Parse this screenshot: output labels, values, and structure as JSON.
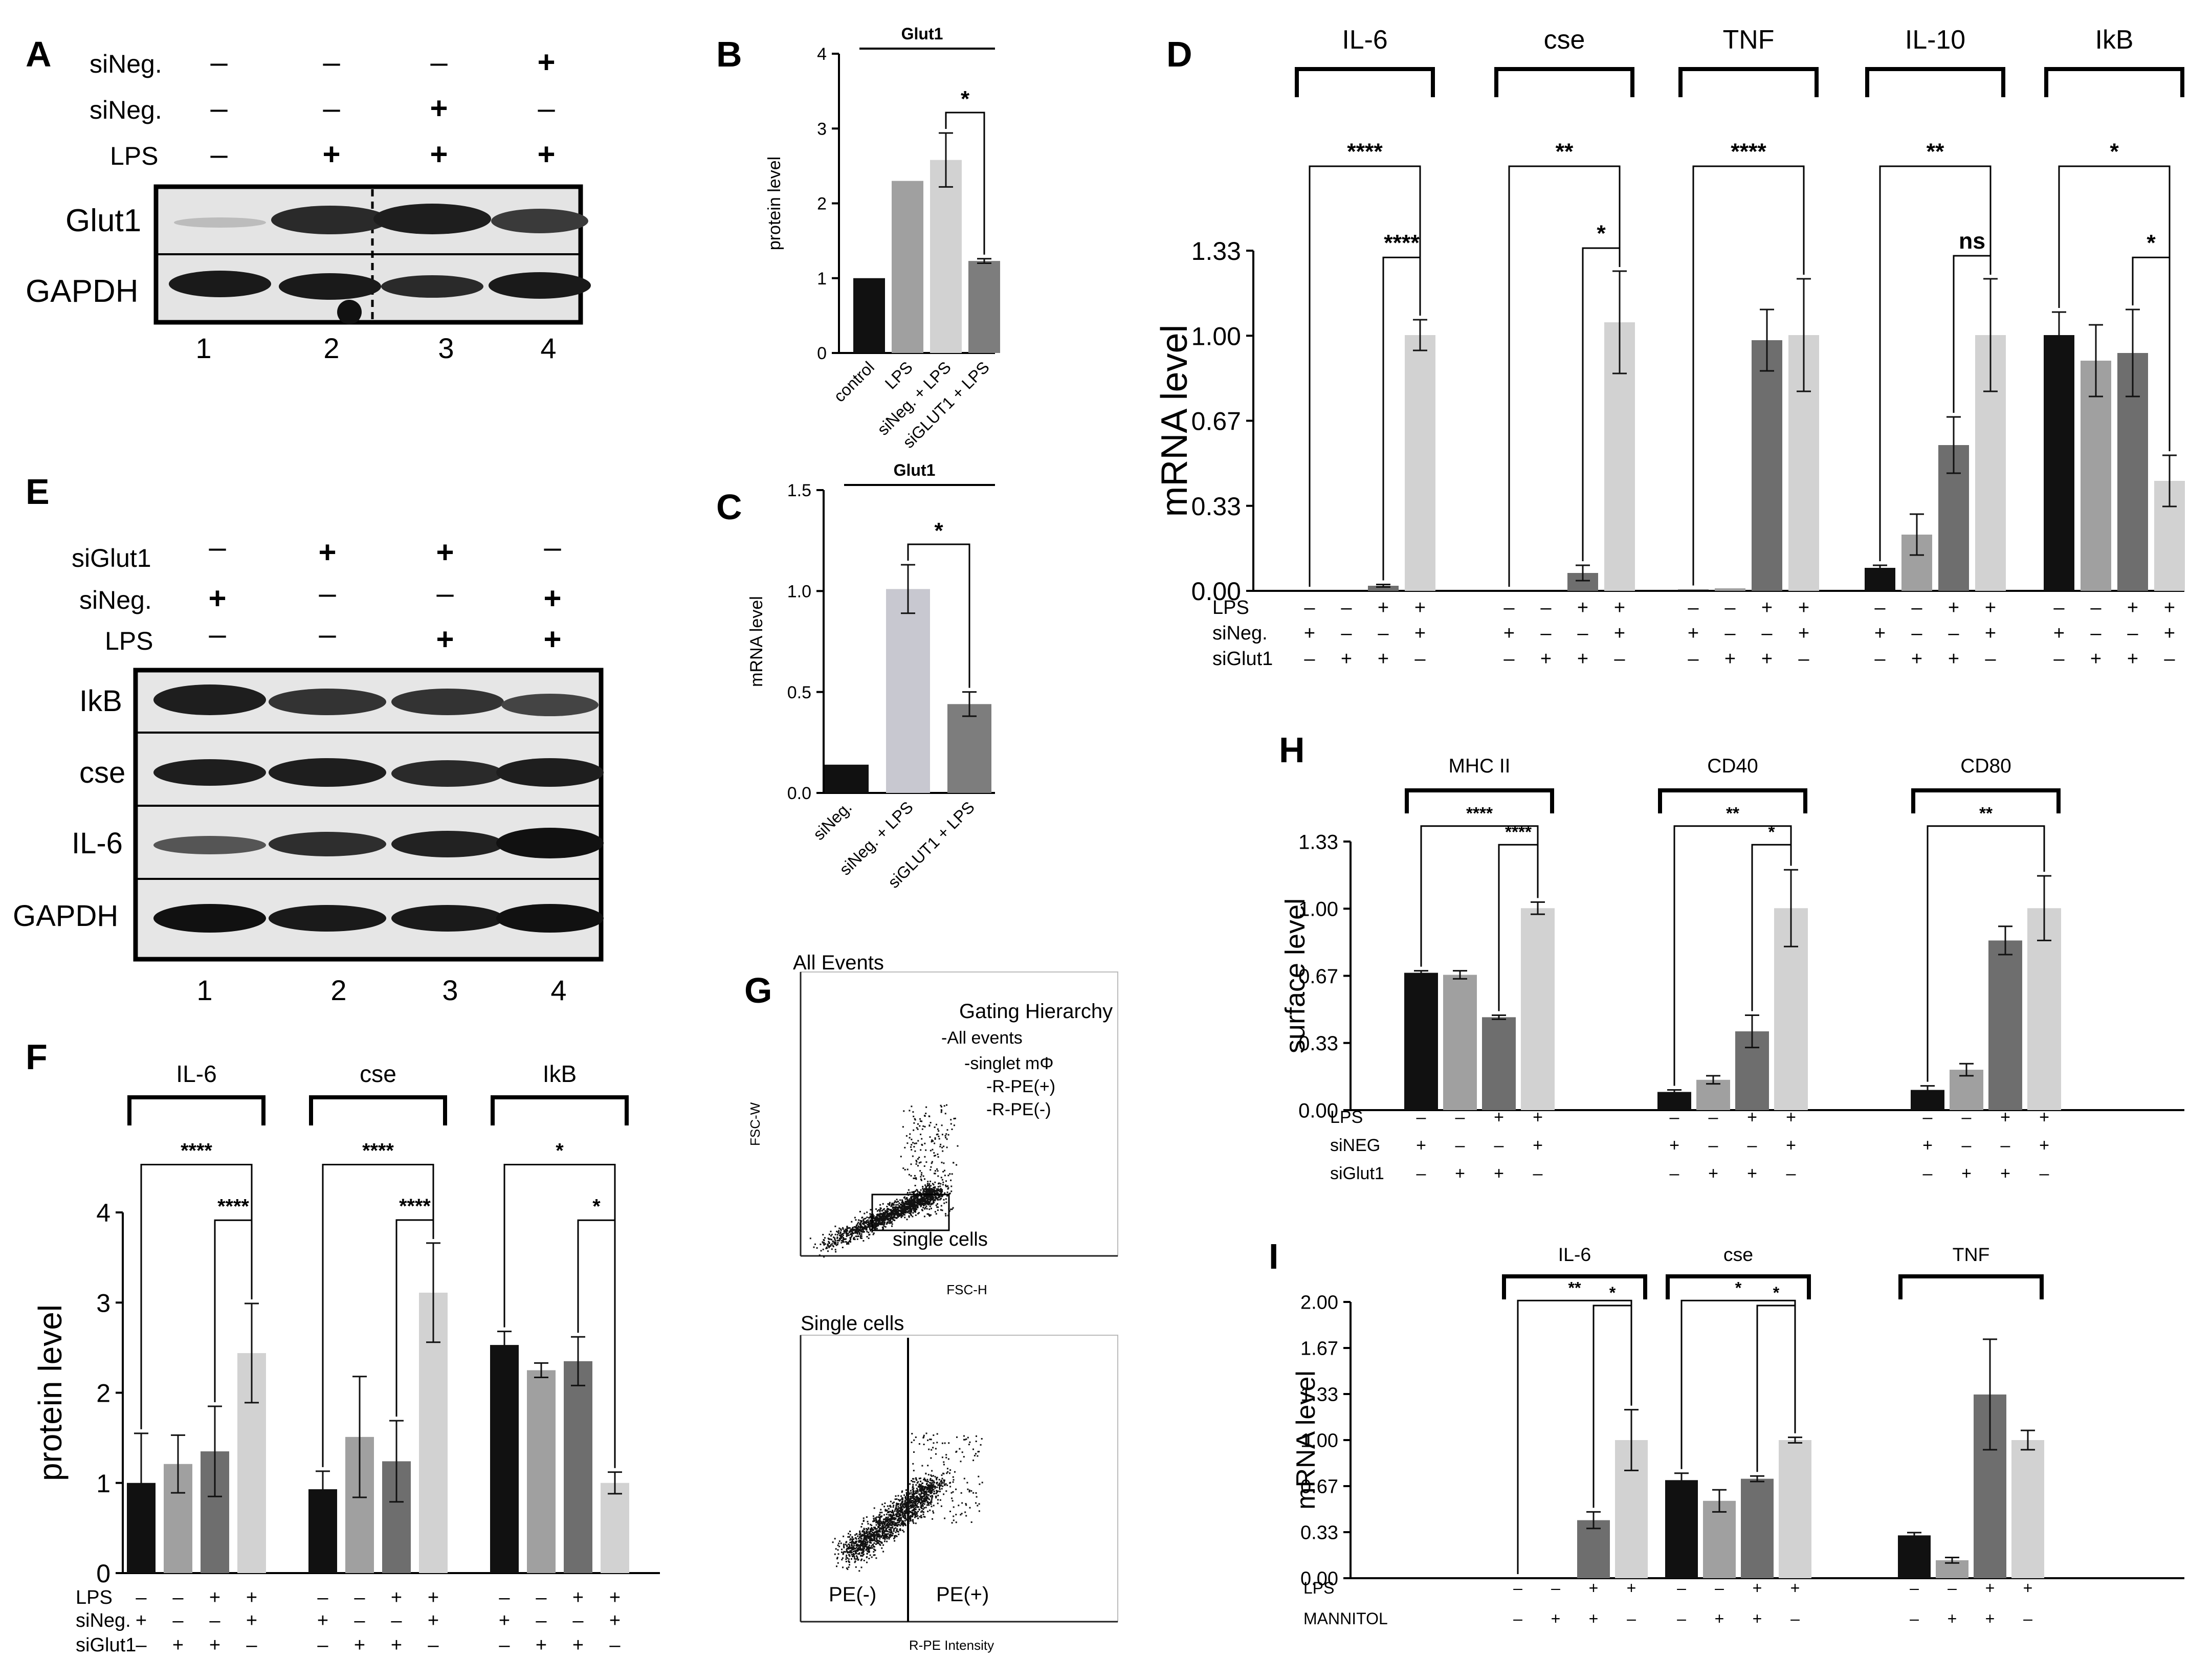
{
  "figure": {
    "panel_letters": {
      "A": "A",
      "B": "B",
      "C": "C",
      "D": "D",
      "E": "E",
      "F": "F",
      "G": "G",
      "H": "H",
      "I": "I"
    },
    "colors": {
      "black": "#111111",
      "gray1": "#a0a0a0",
      "gray2": "#7d7d7d",
      "gray3": "#d2d2d2",
      "gray_light": "#c8c8d0",
      "gray_mid": "#6e6e6e"
    }
  },
  "panelA": {
    "rows": [
      {
        "label": "siNeg.",
        "signs": [
          "–",
          "–",
          "–",
          "+"
        ]
      },
      {
        "label": "siNeg.",
        "signs": [
          "–",
          "–",
          "+",
          "–"
        ]
      },
      {
        "label": "LPS",
        "signs": [
          "–",
          "+",
          "+",
          "+"
        ]
      }
    ],
    "bands": [
      "Glut1",
      "GAPDH"
    ],
    "lanes": [
      "1",
      "2",
      "3",
      "4"
    ]
  },
  "panelE": {
    "rows": [
      {
        "label": "siGlut1",
        "signs": [
          "–",
          "+",
          "+",
          "–"
        ]
      },
      {
        "label": "siNeg.",
        "signs": [
          "+",
          "–",
          "–",
          "+"
        ]
      },
      {
        "label": "LPS",
        "signs": [
          "–",
          "–",
          "+",
          "+"
        ]
      }
    ],
    "bands": [
      "IkB",
      "cse",
      "IL-6",
      "GAPDH"
    ],
    "lanes": [
      "1",
      "2",
      "3",
      "4"
    ]
  },
  "panelG": {
    "top_title": "All Events",
    "gating_title": "Gating Hierarchy",
    "gating_items": [
      "-All events",
      "-singlet mΦ",
      "-R-PE(+)",
      "-R-PE(-)"
    ],
    "top_ylabel": "FSC-W",
    "top_xlabel": "FSC-H",
    "gate_label": "single cells",
    "bottom_title": "Single cells",
    "bottom_xlabel": "R-PE Intensity",
    "neg_label": "PE(-)",
    "pos_label": "PE(+)"
  },
  "chart_data": [
    {
      "id": "B",
      "type": "bar",
      "title": "Glut1",
      "ylabel": "protein level",
      "ylim": [
        0,
        4
      ],
      "yticks": [
        "0",
        "1",
        "2",
        "3",
        "4"
      ],
      "categories": [
        "control",
        "LPS",
        "siNeg. + LPS",
        "siGLUT1 + LPS"
      ],
      "values": [
        1.0,
        2.3,
        2.58,
        1.23
      ],
      "errors": [
        0,
        0,
        0.36,
        0.03
      ],
      "annotations": [
        {
          "from": 2,
          "to": 3,
          "label": "*"
        }
      ]
    },
    {
      "id": "C",
      "type": "bar",
      "title": "Glut1",
      "ylabel": "mRNA level",
      "ylim": [
        0,
        1.5
      ],
      "yticks": [
        "0.0",
        "0.5",
        "1.0",
        "1.5"
      ],
      "categories": [
        "siNeg.",
        "siNeg. + LPS",
        "siGLUT1 + LPS"
      ],
      "values": [
        0.14,
        1.01,
        0.44
      ],
      "errors": [
        0,
        0.12,
        0.06
      ],
      "annotations": [
        {
          "from": 1,
          "to": 2,
          "label": "*"
        }
      ]
    },
    {
      "id": "D",
      "type": "bar",
      "ylabel": "mRNA level",
      "ylim": [
        0,
        1.33
      ],
      "yticks": [
        "0.00",
        "0.33",
        "0.67",
        "1.00",
        "1.33"
      ],
      "groups": [
        {
          "name": "IL-6",
          "values": [
            0,
            0,
            0.02,
            1.0
          ],
          "errors": [
            0,
            0,
            0.005,
            0.06
          ],
          "brackets": [
            {
              "from": 0,
              "to": 3,
              "label": "****"
            },
            {
              "from": 2,
              "to": 3,
              "label": "****"
            }
          ]
        },
        {
          "name": "cse",
          "values": [
            0,
            0,
            0.07,
            1.05
          ],
          "errors": [
            0,
            0,
            0.03,
            0.2
          ],
          "brackets": [
            {
              "from": 0,
              "to": 3,
              "label": "**"
            },
            {
              "from": 2,
              "to": 3,
              "label": "*"
            }
          ]
        },
        {
          "name": "TNF",
          "values": [
            0.005,
            0.01,
            0.98,
            1.0
          ],
          "errors": [
            0,
            0,
            0.12,
            0.22
          ],
          "brackets": [
            {
              "from": 0,
              "to": 3,
              "label": "****"
            }
          ]
        },
        {
          "name": "IL-10",
          "values": [
            0.09,
            0.22,
            0.57,
            1.0
          ],
          "errors": [
            0.01,
            0.08,
            0.11,
            0.22
          ],
          "brackets": [
            {
              "from": 0,
              "to": 3,
              "label": "**"
            },
            {
              "from": 2,
              "to": 3,
              "label": "ns"
            }
          ]
        },
        {
          "name": "IkB",
          "values": [
            1.0,
            0.9,
            0.93,
            0.43
          ],
          "errors": [
            0.09,
            0.14,
            0.17,
            0.1
          ],
          "brackets": [
            {
              "from": 0,
              "to": 3,
              "label": "*"
            },
            {
              "from": 2,
              "to": 3,
              "label": "*"
            }
          ]
        }
      ],
      "condition_rows": [
        {
          "label": "LPS",
          "signs": [
            "–",
            "–",
            "+",
            "+"
          ]
        },
        {
          "label": "siNeg.",
          "signs": [
            "+",
            "–",
            "–",
            "+"
          ]
        },
        {
          "label": "siGlut1",
          "signs": [
            "–",
            "+",
            "+",
            "–"
          ]
        }
      ]
    },
    {
      "id": "F",
      "type": "bar",
      "ylabel": "protein level",
      "ylim": [
        0,
        4
      ],
      "yticks": [
        "0",
        "1",
        "2",
        "3",
        "4"
      ],
      "groups": [
        {
          "name": "IL-6",
          "values": [
            1.0,
            1.21,
            1.35,
            2.44
          ],
          "errors": [
            0.55,
            0.32,
            0.5,
            0.55
          ],
          "brackets": [
            {
              "from": 0,
              "to": 3,
              "label": "****"
            },
            {
              "from": 2,
              "to": 3,
              "label": "****"
            }
          ]
        },
        {
          "name": "cse",
          "values": [
            0.93,
            1.51,
            1.24,
            3.11
          ],
          "errors": [
            0.2,
            0.67,
            0.45,
            0.55
          ],
          "brackets": [
            {
              "from": 0,
              "to": 3,
              "label": "****"
            },
            {
              "from": 2,
              "to": 3,
              "label": "****"
            }
          ]
        },
        {
          "name": "IkB",
          "values": [
            2.53,
            2.25,
            2.35,
            1.0
          ],
          "errors": [
            0.15,
            0.08,
            0.27,
            0.12
          ],
          "brackets": [
            {
              "from": 0,
              "to": 3,
              "label": "*"
            },
            {
              "from": 2,
              "to": 3,
              "label": "*"
            }
          ]
        }
      ],
      "condition_rows": [
        {
          "label": "LPS",
          "signs": [
            "–",
            "–",
            "+",
            "+"
          ]
        },
        {
          "label": "siNeg.",
          "signs": [
            "+",
            "–",
            "–",
            "+"
          ]
        },
        {
          "label": "siGlut1",
          "signs": [
            "–",
            "+",
            "+",
            "–"
          ]
        }
      ]
    },
    {
      "id": "H",
      "type": "bar",
      "ylabel": "surface level",
      "ylim": [
        0,
        1.33
      ],
      "yticks": [
        "0.00",
        "0.33",
        "0.67",
        "1.00",
        "1.33"
      ],
      "groups": [
        {
          "name": "MHC II",
          "values": [
            0.68,
            0.67,
            0.46,
            1.0
          ],
          "errors": [
            0.01,
            0.02,
            0.01,
            0.03
          ],
          "brackets": [
            {
              "from": 0,
              "to": 3,
              "label": "****"
            },
            {
              "from": 2,
              "to": 3,
              "label": "****"
            }
          ]
        },
        {
          "name": "CD40",
          "values": [
            0.09,
            0.15,
            0.39,
            1.0
          ],
          "errors": [
            0.01,
            0.02,
            0.08,
            0.19
          ],
          "brackets": [
            {
              "from": 0,
              "to": 3,
              "label": "**"
            },
            {
              "from": 2,
              "to": 3,
              "label": "*"
            }
          ]
        },
        {
          "name": "CD80",
          "values": [
            0.1,
            0.2,
            0.84,
            1.0
          ],
          "errors": [
            0.02,
            0.03,
            0.07,
            0.16
          ],
          "brackets": [
            {
              "from": 0,
              "to": 3,
              "label": "**"
            }
          ]
        }
      ],
      "condition_rows": [
        {
          "label": "LPS",
          "signs": [
            "–",
            "–",
            "+",
            "+"
          ]
        },
        {
          "label": "siNEG",
          "signs": [
            "+",
            "–",
            "–",
            "+"
          ]
        },
        {
          "label": "siGlut1",
          "signs": [
            "–",
            "+",
            "+",
            "–"
          ]
        }
      ]
    },
    {
      "id": "I",
      "type": "bar",
      "ylabel": "mRNA level",
      "ylim": [
        0,
        2.0
      ],
      "yticks": [
        "0.00",
        "0.33",
        "0.67",
        "1.00",
        "1.33",
        "1.67",
        "2.00"
      ],
      "groups": [
        {
          "name": "IL-6",
          "values": [
            0,
            0,
            0.42,
            1.0
          ],
          "errors": [
            0,
            0,
            0.06,
            0.22
          ],
          "brackets": [
            {
              "from": 0,
              "to": 3,
              "label": "**"
            },
            {
              "from": 2,
              "to": 3,
              "label": "*"
            }
          ]
        },
        {
          "name": "cse",
          "values": [
            0.71,
            0.56,
            0.72,
            1.0
          ],
          "errors": [
            0.05,
            0.08,
            0.02,
            0.02
          ],
          "brackets": [
            {
              "from": 0,
              "to": 3,
              "label": "*"
            },
            {
              "from": 2,
              "to": 3,
              "label": "*"
            }
          ]
        },
        {
          "name": "TNF",
          "values": [
            0.31,
            0.13,
            1.33,
            1.0
          ],
          "errors": [
            0.02,
            0.02,
            0.4,
            0.07
          ],
          "brackets": []
        }
      ],
      "condition_rows": [
        {
          "label": "LPS",
          "signs": [
            "–",
            "–",
            "+",
            "+"
          ]
        },
        {
          "label": "MANNITOL",
          "signs": [
            "–",
            "+",
            "+",
            "–"
          ]
        }
      ]
    }
  ]
}
